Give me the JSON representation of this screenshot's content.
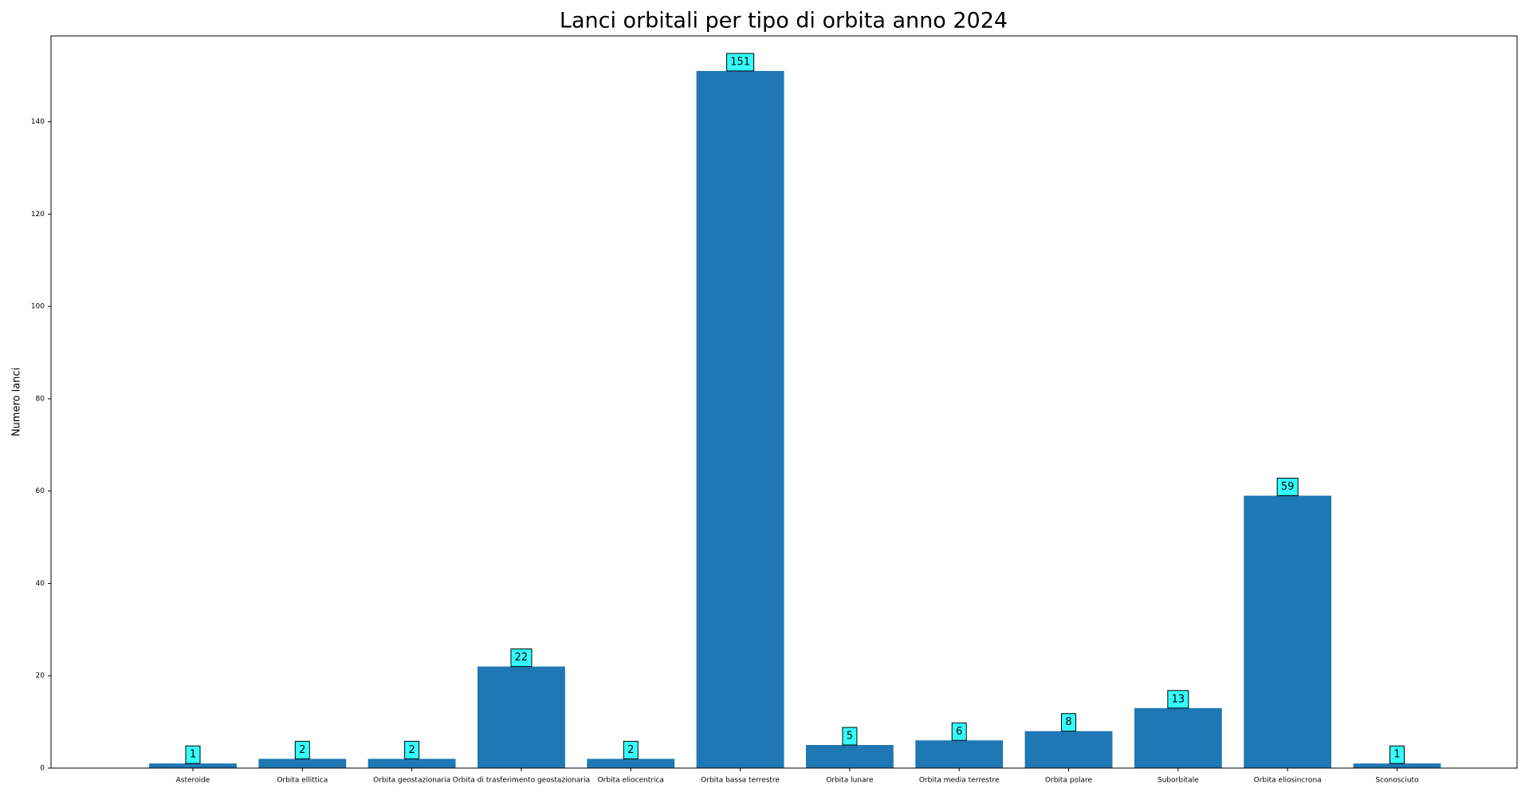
{
  "chart_data": {
    "type": "bar",
    "title": "Lanci orbitali per tipo di orbita anno 2024",
    "y_label": "Numero lanci",
    "categories": [
      "Asteroide",
      "Orbita ellittica",
      "Orbita geostazionaria",
      "Orbita di trasferimento geostazionaria",
      "Orbita eliocentrica",
      "Orbita bassa terrestre",
      "Orbita lunare",
      "Orbita media terrestre",
      "Orbita polare",
      "Suborbitale",
      "Orbita eliosincrona",
      "Sconosciuto"
    ],
    "values": [
      1,
      2,
      2,
      22,
      2,
      151,
      5,
      6,
      8,
      13,
      59,
      1
    ],
    "color": "#1f77b4",
    "label_box_color": "#33ffff",
    "ylim": [
      0,
      158.6
    ],
    "yticks": [
      0,
      20,
      40,
      60,
      80,
      100,
      120,
      140
    ],
    "grid": false
  }
}
